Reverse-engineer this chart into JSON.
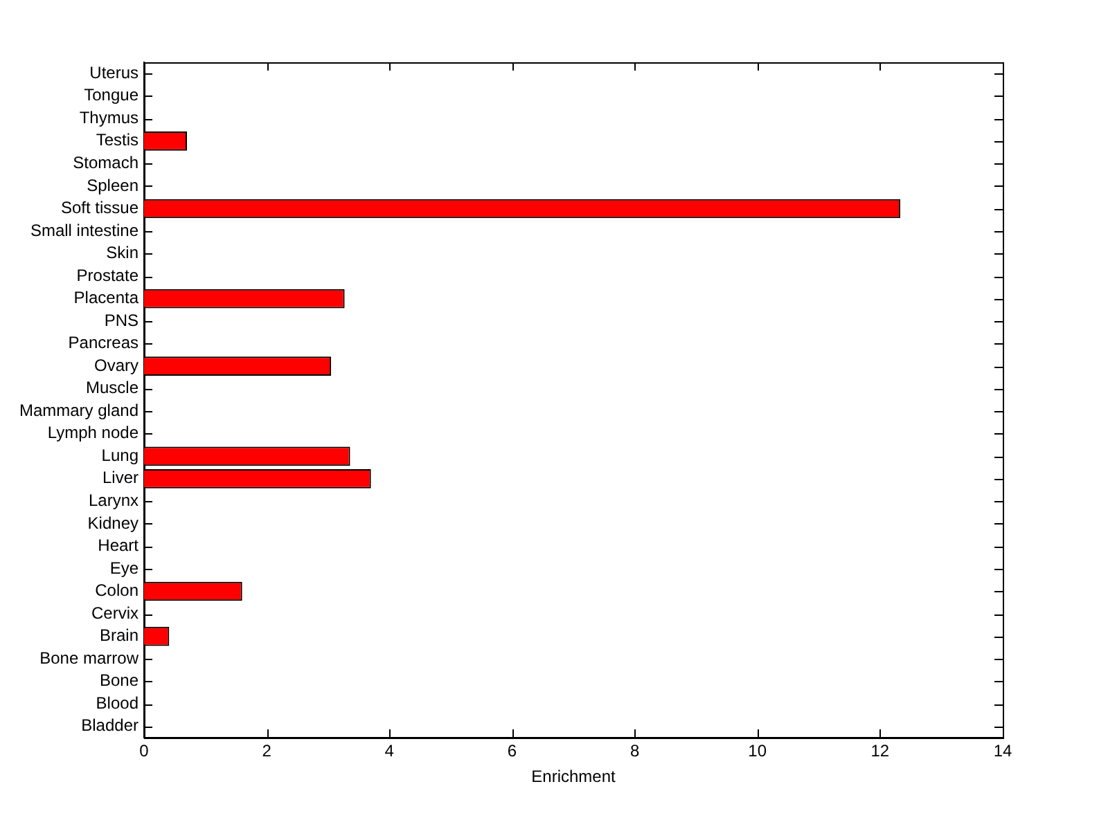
{
  "chart_data": {
    "type": "bar",
    "orientation": "horizontal",
    "xlabel": "Enrichment",
    "categories": [
      "Uterus",
      "Tongue",
      "Thymus",
      "Testis",
      "Stomach",
      "Spleen",
      "Soft tissue",
      "Small intestine",
      "Skin",
      "Prostate",
      "Placenta",
      "PNS",
      "Pancreas",
      "Ovary",
      "Muscle",
      "Mammary gland",
      "Lymph node",
      "Lung",
      "Liver",
      "Larynx",
      "Kidney",
      "Heart",
      "Eye",
      "Colon",
      "Cervix",
      "Brain",
      "Bone marrow",
      "Bone",
      "Blood",
      "Bladder"
    ],
    "values": [
      0,
      0,
      0,
      0.7,
      0,
      0,
      12.33,
      0,
      0,
      0,
      3.27,
      0,
      0,
      3.05,
      0,
      0,
      0,
      3.36,
      3.7,
      0,
      0,
      0,
      0,
      1.6,
      0,
      0.41,
      0,
      0,
      0,
      0
    ],
    "color": "#ff0000",
    "xlim": [
      0,
      14
    ],
    "xticks": [
      0,
      2,
      4,
      6,
      8,
      10,
      12,
      14
    ],
    "grid": false,
    "legend": false
  }
}
